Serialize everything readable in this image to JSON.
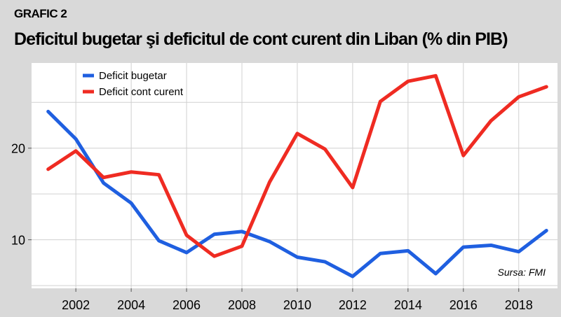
{
  "header": {
    "label": "GRAFIC 2",
    "title": "Deficitul bugetar şi deficitul de cont curent din Liban (% din PIB)"
  },
  "colors": {
    "background": "#d9d9d9",
    "plot_background": "#ffffff",
    "grid": "#d0d0d0",
    "blue_series": "#1f5fe0",
    "red_series": "#ef2b22"
  },
  "chart_data": {
    "type": "line",
    "x": [
      2001,
      2002,
      2003,
      2004,
      2005,
      2006,
      2007,
      2008,
      2009,
      2010,
      2011,
      2012,
      2013,
      2014,
      2015,
      2016,
      2017,
      2018,
      2019
    ],
    "series": [
      {
        "name": "Deficit bugetar",
        "color": "#1f5fe0",
        "values": [
          24.0,
          21.0,
          16.2,
          14.0,
          9.9,
          8.6,
          10.6,
          10.9,
          9.8,
          8.1,
          7.6,
          6.0,
          8.5,
          8.8,
          6.3,
          9.2,
          9.4,
          8.7,
          11.0
        ]
      },
      {
        "name": "Deficit cont curent",
        "color": "#ef2b22",
        "values": [
          17.7,
          19.7,
          16.8,
          17.4,
          17.1,
          10.5,
          8.2,
          9.3,
          16.3,
          21.6,
          19.9,
          15.7,
          25.1,
          27.3,
          27.9,
          19.2,
          23.0,
          25.6,
          26.7
        ]
      }
    ],
    "xticks": [
      "2002",
      "2004",
      "2006",
      "2008",
      "2010",
      "2012",
      "2014",
      "2016",
      "2018"
    ],
    "yticks": [
      "10",
      "20"
    ],
    "ylim": [
      4.7,
      29.3
    ],
    "xlim": [
      2000.4,
      2019.4
    ],
    "grid": true,
    "legend": "top-left",
    "source": "Sursa: FMI"
  }
}
